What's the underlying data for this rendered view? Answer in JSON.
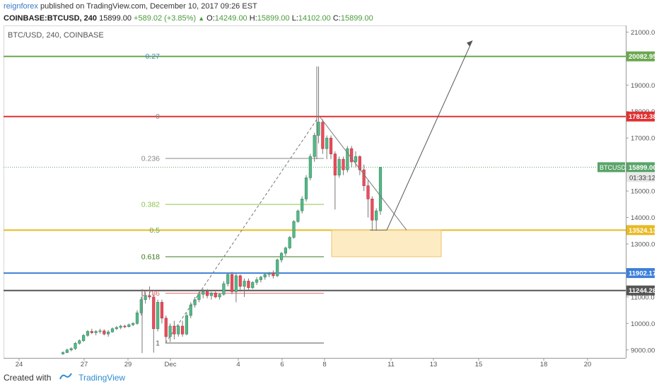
{
  "header": {
    "author": "reignforex",
    "published_text": "published on TradingView.com, December 10, 2017 09:26 EST"
  },
  "symbol_bar": {
    "symbol": "COINBASE:BTCUSD, 240",
    "last": "15899.00",
    "change": "+589.02 (+3.85%)",
    "o_label": "O:",
    "o_value": "14249.00",
    "h_label": "H:",
    "h_value": "15899.00",
    "l_label": "L:",
    "l_value": "14102.00",
    "c_label": "C:",
    "c_value": "15899.00"
  },
  "chart_data": {
    "type": "candlestick",
    "title": "BTC/USD, 240, COINBASE",
    "ylim": [
      8700,
      21250
    ],
    "y_ticks": [
      9000,
      10000,
      11000,
      12000,
      13000,
      14000,
      15000,
      16000,
      17000,
      18000,
      19000,
      20000,
      21000
    ],
    "x_ticks": [
      "24",
      "27",
      "29",
      "Dec",
      "4",
      "6",
      "8",
      "11",
      "13",
      "15",
      "18",
      "20"
    ],
    "price_lines": [
      {
        "label": "20082.95",
        "value": 20082.95,
        "color": "#6aa84f"
      },
      {
        "label": "17812.38",
        "value": 17812.38,
        "color": "#e03131"
      },
      {
        "label": "15899.00",
        "value": 15899.0,
        "color": "#5aa469",
        "tag": "BTCUSD",
        "countdown": "01:33:12"
      },
      {
        "label": "13524.13",
        "value": 13524.13,
        "color": "#e8b923"
      },
      {
        "label": "11902.17",
        "value": 11902.17,
        "color": "#3d7fd9"
      },
      {
        "label": "11244.28",
        "value": 11244.28,
        "color": "#555555"
      }
    ],
    "fib_levels": [
      {
        "label": "0.27",
        "value": 20082.95,
        "color": "#4a86c8"
      },
      {
        "label": "0",
        "value": 17812.38,
        "color": "#888888"
      },
      {
        "label": "0.236",
        "value": 16230,
        "color": "#888888"
      },
      {
        "label": "0.382",
        "value": 14494,
        "color": "#8bc34a"
      },
      {
        "label": "0.5",
        "value": 13524.13,
        "color": "#6aa84f"
      },
      {
        "label": "0.618",
        "value": 12520,
        "color": "#38761d"
      },
      {
        "label": "0.786",
        "value": 11140,
        "color": "#e06666"
      },
      {
        "label": "1",
        "value": 9260,
        "color": "#555555"
      }
    ],
    "demand_zone": {
      "top": 13524.13,
      "bottom": 12520
    },
    "candles": [
      {
        "o": 8850,
        "h": 8950,
        "l": 8820,
        "c": 8900
      },
      {
        "o": 8900,
        "h": 9050,
        "l": 8880,
        "c": 9000
      },
      {
        "o": 9000,
        "h": 9100,
        "l": 8950,
        "c": 9050
      },
      {
        "o": 9050,
        "h": 9300,
        "l": 9000,
        "c": 9250
      },
      {
        "o": 9250,
        "h": 9400,
        "l": 9200,
        "c": 9350
      },
      {
        "o": 9350,
        "h": 9600,
        "l": 9300,
        "c": 9550
      },
      {
        "o": 9550,
        "h": 9750,
        "l": 9500,
        "c": 9700
      },
      {
        "o": 9700,
        "h": 9800,
        "l": 9600,
        "c": 9650
      },
      {
        "o": 9650,
        "h": 9750,
        "l": 9550,
        "c": 9700
      },
      {
        "o": 9700,
        "h": 9800,
        "l": 9620,
        "c": 9720
      },
      {
        "o": 9720,
        "h": 9780,
        "l": 9550,
        "c": 9600
      },
      {
        "o": 9600,
        "h": 9750,
        "l": 9500,
        "c": 9680
      },
      {
        "o": 9680,
        "h": 9850,
        "l": 9650,
        "c": 9800
      },
      {
        "o": 9800,
        "h": 9900,
        "l": 9750,
        "c": 9850
      },
      {
        "o": 9850,
        "h": 9950,
        "l": 9780,
        "c": 9900
      },
      {
        "o": 9900,
        "h": 9950,
        "l": 9820,
        "c": 9880
      },
      {
        "o": 9880,
        "h": 10000,
        "l": 9850,
        "c": 9950
      },
      {
        "o": 9950,
        "h": 10050,
        "l": 9900,
        "c": 10000
      },
      {
        "o": 10000,
        "h": 10500,
        "l": 9950,
        "c": 10400
      },
      {
        "o": 10400,
        "h": 11000,
        "l": 10300,
        "c": 10900
      },
      {
        "o": 10900,
        "h": 11200,
        "l": 10750,
        "c": 11050
      },
      {
        "o": 11050,
        "h": 11400,
        "l": 10900,
        "c": 11000
      },
      {
        "o": 11000,
        "h": 11100,
        "l": 8900,
        "c": 9800
      },
      {
        "o": 9800,
        "h": 10900,
        "l": 9700,
        "c": 10800
      },
      {
        "o": 10800,
        "h": 10900,
        "l": 10000,
        "c": 10200
      },
      {
        "o": 10200,
        "h": 10300,
        "l": 9300,
        "c": 9500
      },
      {
        "o": 9500,
        "h": 10000,
        "l": 9300,
        "c": 9900
      },
      {
        "o": 9900,
        "h": 10100,
        "l": 9400,
        "c": 9600
      },
      {
        "o": 9600,
        "h": 9950,
        "l": 9500,
        "c": 9900
      },
      {
        "o": 9900,
        "h": 10100,
        "l": 9500,
        "c": 9600
      },
      {
        "o": 9600,
        "h": 10400,
        "l": 9550,
        "c": 10300
      },
      {
        "o": 10300,
        "h": 10800,
        "l": 10200,
        "c": 10700
      },
      {
        "o": 10700,
        "h": 11000,
        "l": 10600,
        "c": 10900
      },
      {
        "o": 10900,
        "h": 11200,
        "l": 10800,
        "c": 11100
      },
      {
        "o": 11100,
        "h": 11300,
        "l": 10950,
        "c": 11200
      },
      {
        "o": 11200,
        "h": 11300,
        "l": 10950,
        "c": 11050
      },
      {
        "o": 11050,
        "h": 11200,
        "l": 10900,
        "c": 11150
      },
      {
        "o": 11150,
        "h": 11250,
        "l": 10950,
        "c": 11000
      },
      {
        "o": 11000,
        "h": 11150,
        "l": 10900,
        "c": 11100
      },
      {
        "o": 11100,
        "h": 11600,
        "l": 11050,
        "c": 11500
      },
      {
        "o": 11500,
        "h": 11900,
        "l": 11400,
        "c": 11850
      },
      {
        "o": 11850,
        "h": 11950,
        "l": 11100,
        "c": 11200
      },
      {
        "o": 11200,
        "h": 11900,
        "l": 10800,
        "c": 11800
      },
      {
        "o": 11800,
        "h": 11850,
        "l": 11200,
        "c": 11400
      },
      {
        "o": 11400,
        "h": 11700,
        "l": 11000,
        "c": 11600
      },
      {
        "o": 11600,
        "h": 11700,
        "l": 11250,
        "c": 11350
      },
      {
        "o": 11350,
        "h": 11600,
        "l": 11300,
        "c": 11550
      },
      {
        "o": 11550,
        "h": 11750,
        "l": 11450,
        "c": 11650
      },
      {
        "o": 11650,
        "h": 11800,
        "l": 11550,
        "c": 11750
      },
      {
        "o": 11750,
        "h": 11900,
        "l": 11650,
        "c": 11850
      },
      {
        "o": 11850,
        "h": 11950,
        "l": 11750,
        "c": 11900
      },
      {
        "o": 11900,
        "h": 12000,
        "l": 11700,
        "c": 11800
      },
      {
        "o": 11800,
        "h": 12450,
        "l": 11750,
        "c": 12400
      },
      {
        "o": 12400,
        "h": 12700,
        "l": 12300,
        "c": 12650
      },
      {
        "o": 12650,
        "h": 12900,
        "l": 12550,
        "c": 12850
      },
      {
        "o": 12850,
        "h": 13300,
        "l": 12800,
        "c": 13250
      },
      {
        "o": 13250,
        "h": 13900,
        "l": 13200,
        "c": 13850
      },
      {
        "o": 13850,
        "h": 14300,
        "l": 13800,
        "c": 14250
      },
      {
        "o": 14250,
        "h": 14800,
        "l": 14150,
        "c": 14700
      },
      {
        "o": 14700,
        "h": 15600,
        "l": 14600,
        "c": 15500
      },
      {
        "o": 15500,
        "h": 16400,
        "l": 15400,
        "c": 16300
      },
      {
        "o": 16300,
        "h": 17200,
        "l": 16100,
        "c": 17100
      },
      {
        "o": 17100,
        "h": 19700,
        "l": 16800,
        "c": 17600
      },
      {
        "o": 17600,
        "h": 17700,
        "l": 16400,
        "c": 16600
      },
      {
        "o": 16600,
        "h": 17100,
        "l": 16200,
        "c": 17000
      },
      {
        "o": 17000,
        "h": 17100,
        "l": 16200,
        "c": 16400
      },
      {
        "o": 16400,
        "h": 16500,
        "l": 14300,
        "c": 15600
      },
      {
        "o": 15600,
        "h": 16300,
        "l": 15500,
        "c": 16200
      },
      {
        "o": 16200,
        "h": 16300,
        "l": 15600,
        "c": 15800
      },
      {
        "o": 15800,
        "h": 16700,
        "l": 15700,
        "c": 16600
      },
      {
        "o": 16600,
        "h": 16700,
        "l": 15900,
        "c": 16100
      },
      {
        "o": 16100,
        "h": 16500,
        "l": 15900,
        "c": 16300
      },
      {
        "o": 16300,
        "h": 16350,
        "l": 15600,
        "c": 15800
      },
      {
        "o": 15800,
        "h": 16000,
        "l": 15000,
        "c": 15200
      },
      {
        "o": 15200,
        "h": 15400,
        "l": 14000,
        "c": 14700
      },
      {
        "o": 14700,
        "h": 14800,
        "l": 13500,
        "c": 13900
      },
      {
        "o": 13900,
        "h": 14350,
        "l": 13500,
        "c": 14250
      },
      {
        "o": 14250,
        "h": 15900,
        "l": 14100,
        "c": 15899
      }
    ]
  },
  "footer": {
    "created_with": "Created with",
    "brand": "TradingView"
  }
}
